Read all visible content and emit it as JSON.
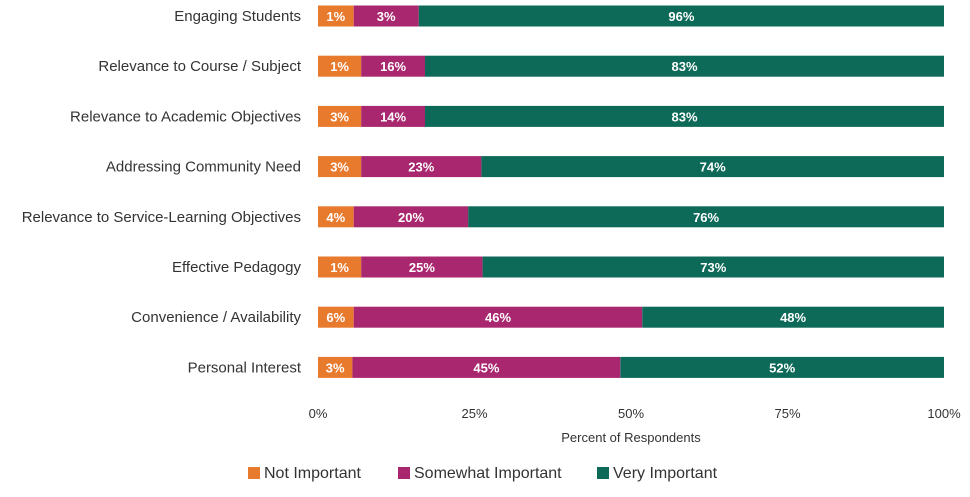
{
  "chart_data": {
    "type": "bar",
    "orientation": "horizontal",
    "stacked": true,
    "categories": [
      "Engaging Students",
      "Relevance to Course / Subject",
      "Relevance to Academic Objectives",
      "Addressing Community Need",
      "Relevance to Service-Learning Objectives",
      "Effective Pedagogy",
      "Convenience / Availability",
      "Personal Interest"
    ],
    "series": [
      {
        "name": "Not Important",
        "color": "#e87a2e",
        "values": [
          1,
          1,
          3,
          3,
          4,
          1,
          6,
          3
        ],
        "rendered": [
          5.7,
          6.9,
          6.9,
          6.9,
          5.7,
          6.9,
          5.7,
          5.5
        ],
        "labels": [
          "1%",
          "1%",
          "3%",
          "3%",
          "4%",
          "1%",
          "6%",
          "3%"
        ]
      },
      {
        "name": "Somewhat Important",
        "color": "#a8276f",
        "values": [
          3,
          16,
          14,
          23,
          20,
          25,
          46,
          45
        ],
        "rendered": [
          10.4,
          10.2,
          10.2,
          19.2,
          18.3,
          19.4,
          46.1,
          42.8
        ],
        "labels": [
          "3%",
          "16%",
          "14%",
          "23%",
          "20%",
          "25%",
          "46%",
          "45%"
        ]
      },
      {
        "name": "Very Important",
        "color": "#0e6a58",
        "values": [
          96,
          83,
          83,
          74,
          76,
          73,
          48,
          52
        ],
        "rendered": [
          83.9,
          82.9,
          82.9,
          73.9,
          76.0,
          73.7,
          48.2,
          51.7
        ],
        "labels": [
          "96%",
          "83%",
          "83%",
          "74%",
          "76%",
          "73%",
          "48%",
          "52%"
        ]
      }
    ],
    "xticks": [
      "0%",
      "25%",
      "50%",
      "75%",
      "100%"
    ],
    "xlim": [
      0,
      100
    ],
    "xlabel": "Percent of Respondents",
    "ylabel": "",
    "title": "",
    "legend_position": "bottom-center",
    "grid": false
  }
}
